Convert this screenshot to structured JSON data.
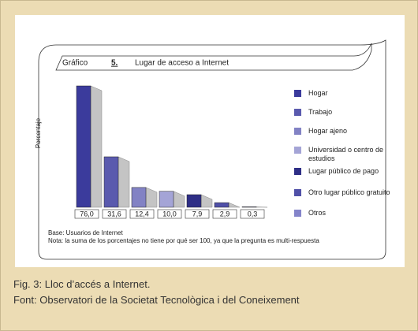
{
  "chart_data": {
    "type": "bar3d",
    "title_prefix": "Gráfico",
    "title_number": "5.",
    "title": "Lugar de acceso a Internet",
    "ylabel": "Porcentaje",
    "categories": [
      "Hogar",
      "Trabajo",
      "Hogar ajeno",
      "Universidad o centro de estudios",
      "Lugar público de pago",
      "Otro lugar público gratuito",
      "Otros"
    ],
    "values": [
      76.0,
      31.6,
      12.4,
      10.0,
      7.9,
      2.9,
      0.3
    ],
    "value_labels": [
      "76,0",
      "31,6",
      "12,4",
      "10,0",
      "7,9",
      "2,9",
      "0,3"
    ],
    "colors": [
      "#3b3b9c",
      "#5a5aae",
      "#8282c4",
      "#a4a4d6",
      "#2e2e86",
      "#5050a8",
      "#8484ca"
    ],
    "ylim": [
      0,
      76
    ],
    "notes": [
      "Base: Usuarios de Internet",
      "Nota: la suma de los porcentajes no tiene por qué ser 100, ya que la pregunta es multi-respuesta"
    ]
  },
  "caption": {
    "title": "Fig. 3:  Lloc d’accés a Internet.",
    "source": "Font: Observatori de la Societat Tecnològica i del Coneixement"
  }
}
